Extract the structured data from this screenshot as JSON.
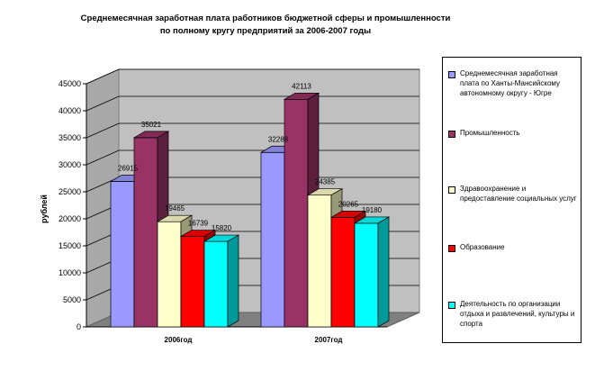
{
  "chart_data": {
    "type": "bar",
    "style": "3d-clustered",
    "title": [
      "Среднемесячная заработная плата работников бюджетной сферы и промышленности",
      "по полному кругу предприятий за 2006-2007 годы"
    ],
    "ylabel": "рублей",
    "xlabel": "",
    "ylim": [
      0,
      45000
    ],
    "y_ticks": [
      "0",
      "5000",
      "10000",
      "15000",
      "20000",
      "25000",
      "30000",
      "35000",
      "40000",
      "45000"
    ],
    "grid": true,
    "legend_position": "right",
    "categories": [
      "2006год",
      "2007год"
    ],
    "series": [
      {
        "name": "Среднемесячная заработная плата по Ханты-Мансийскому автономному округу - Югре",
        "color": "#9999FF",
        "values": [
          26915,
          32288
        ]
      },
      {
        "name": "Промышленность",
        "color": "#993366",
        "values": [
          35021,
          42113
        ]
      },
      {
        "name": "Здравоохранение и предоставление социальных услуг",
        "color": "#FFFFCC",
        "values": [
          19465,
          24385
        ]
      },
      {
        "name": "Образование",
        "color": "#FF0000",
        "values": [
          16739,
          20265
        ]
      },
      {
        "name": "Деятельность по организации отдыха и развлечений, культуры и спорта",
        "color": "#00FFFF",
        "values": [
          15820,
          19180
        ]
      }
    ]
  }
}
